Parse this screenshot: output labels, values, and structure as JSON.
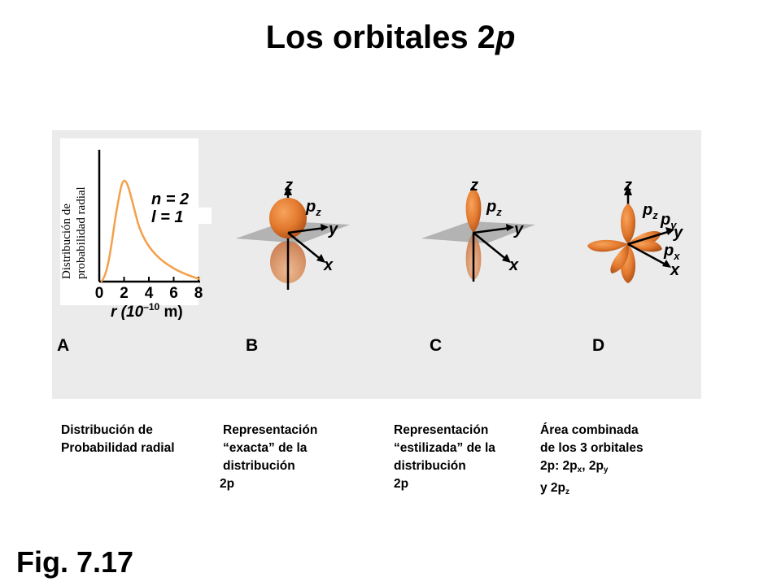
{
  "title": {
    "main": "Los orbitales 2",
    "var": "p"
  },
  "panel_a": {
    "ylabel_line1": "Distribución de",
    "ylabel_line2": "probabilidad radial",
    "n_label": "n = 2",
    "l_label": "l = 1",
    "x_ticks": [
      "0",
      "2",
      "4",
      "6",
      "8"
    ],
    "xlabel": "r (10",
    "xlabel_exp": "–10",
    "xlabel_unit": " m)",
    "letter": "A"
  },
  "panel_b": {
    "letter": "B",
    "z": "z",
    "y": "y",
    "x": "x",
    "pz": "p",
    "pz_sub": "z"
  },
  "panel_c": {
    "letter": "C",
    "z": "z",
    "y": "y",
    "x": "x",
    "pz": "p",
    "pz_sub": "z"
  },
  "panel_d": {
    "letter": "D",
    "z": "z",
    "y": "y",
    "x": "x",
    "pz": "p",
    "pz_sub": "z",
    "py": "p",
    "py_sub": "y",
    "px": "p",
    "px_sub": "x"
  },
  "captions": {
    "a": [
      "Distribución de",
      "Probabilidad radial"
    ],
    "b": [
      "Representación",
      "“exacta” de la",
      "distribución",
      "2p"
    ],
    "c": [
      "Representación",
      "“estilizada” de la",
      "distribución",
      "2p"
    ],
    "d_line1": "Área combinada",
    "d_line2": "de los 3 orbitales",
    "d_line3_a": "2p: 2p",
    "d_line3_sub_x": "x",
    "d_line3_b": ", 2p",
    "d_line3_sub_y": "y",
    "d_line4_a": "y 2p",
    "d_line4_sub_z": "z"
  },
  "figure_label": "Fig. 7.17",
  "colors": {
    "orbital": "#e2792e",
    "orbital_dark": "#b3521a",
    "curve": "#f4a04a",
    "plane": "#9c9c9c",
    "panel_bg": "#ebebeb"
  }
}
